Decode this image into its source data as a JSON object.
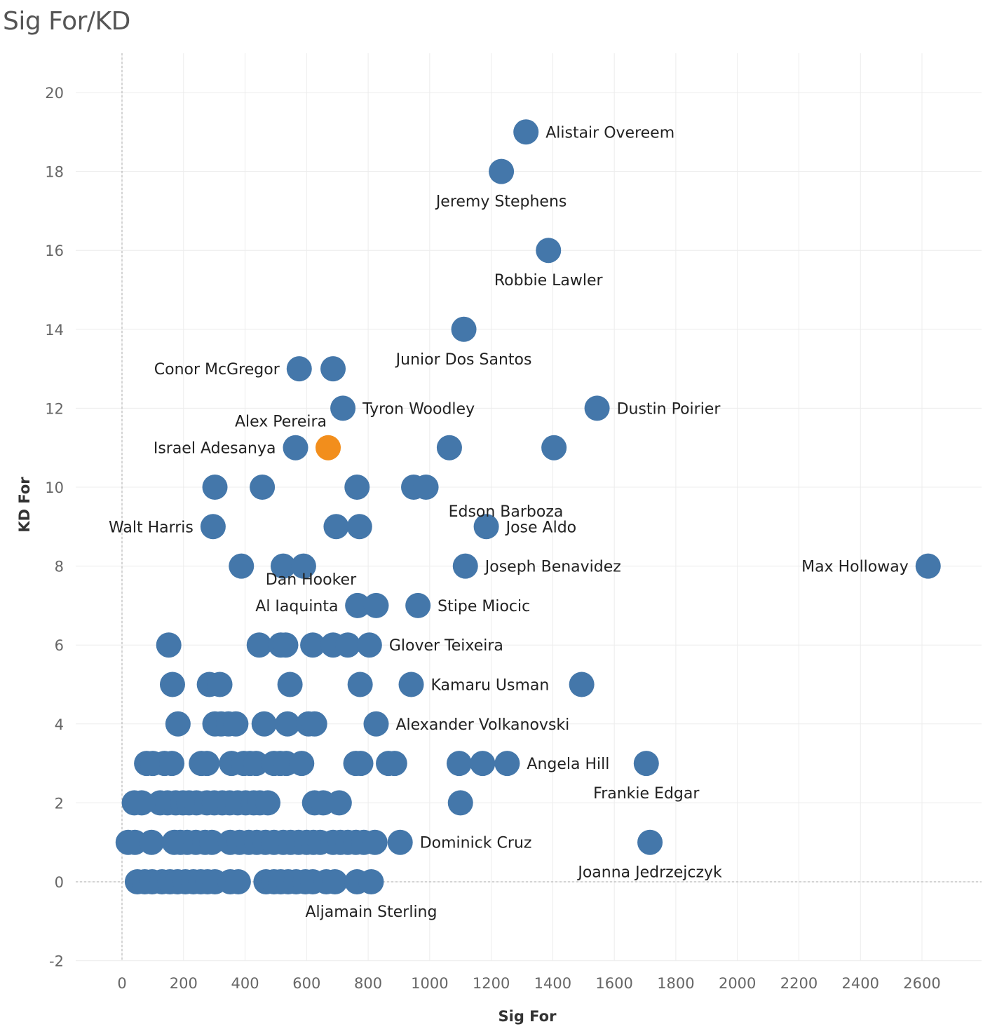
{
  "chart_data": {
    "type": "scatter",
    "title": "Sig For/KD",
    "xlabel": "Sig For",
    "ylabel": "KD For",
    "xlim": [
      -150,
      2800
    ],
    "ylim": [
      -2.8,
      21.2
    ],
    "xticks": [
      0,
      200,
      400,
      600,
      800,
      1000,
      1200,
      1400,
      1600,
      1800,
      2000,
      2200,
      2400,
      2600
    ],
    "yticks": [
      -2,
      0,
      2,
      4,
      6,
      8,
      10,
      12,
      14,
      16,
      18,
      20
    ],
    "grid": true,
    "colors": {
      "default": "#4477aa",
      "highlight": "#f28e1c"
    },
    "points": [
      {
        "x": 1313,
        "y": 19,
        "label": "Alistair Overeem",
        "label_pos": "right"
      },
      {
        "x": 1233,
        "y": 18,
        "label": "Jeremy Stephens",
        "label_pos": "below"
      },
      {
        "x": 1386,
        "y": 16,
        "label": "Robbie Lawler",
        "label_pos": "below"
      },
      {
        "x": 1111,
        "y": 14,
        "label": "Junior Dos Santos",
        "label_pos": "below"
      },
      {
        "x": 576,
        "y": 13,
        "label": "Conor McGregor",
        "label_pos": "left"
      },
      {
        "x": 686,
        "y": 13
      },
      {
        "x": 718,
        "y": 12,
        "label": "Tyron Woodley",
        "label_pos": "right"
      },
      {
        "x": 1544,
        "y": 12,
        "label": "Dustin Poirier",
        "label_pos": "right"
      },
      {
        "x": 564,
        "y": 11,
        "label": "Israel Adesanya",
        "label_pos": "left"
      },
      {
        "x": 670,
        "y": 11,
        "label": "Alex Pereira",
        "label_pos": "above-left",
        "highlight": true
      },
      {
        "x": 1064,
        "y": 11
      },
      {
        "x": 1404,
        "y": 11
      },
      {
        "x": 302,
        "y": 10
      },
      {
        "x": 456,
        "y": 10
      },
      {
        "x": 764,
        "y": 10
      },
      {
        "x": 948,
        "y": 10
      },
      {
        "x": 988,
        "y": 10,
        "label": "Edson Barboza",
        "label_pos": "above-right"
      },
      {
        "x": 296,
        "y": 9,
        "label": "Walt Harris",
        "label_pos": "left"
      },
      {
        "x": 696,
        "y": 9
      },
      {
        "x": 772,
        "y": 9
      },
      {
        "x": 1184,
        "y": 9,
        "label": "Jose Aldo",
        "label_pos": "right"
      },
      {
        "x": 388,
        "y": 8
      },
      {
        "x": 524,
        "y": 8
      },
      {
        "x": 590,
        "y": 8
      },
      {
        "x": 1116,
        "y": 8,
        "label": "Joseph Benavidez",
        "label_pos": "right"
      },
      {
        "x": 2620,
        "y": 8,
        "label": "Max Holloway",
        "label_pos": "left"
      },
      {
        "x": 766,
        "y": 7,
        "label": "Dan Hooker",
        "label_pos": "above-left"
      },
      {
        "x": 826,
        "y": 7,
        "label": "Al Iaquinta",
        "label_pos": "left-far"
      },
      {
        "x": 962,
        "y": 7,
        "label": "Stipe Miocic",
        "label_pos": "right"
      },
      {
        "x": 152,
        "y": 6
      },
      {
        "x": 446,
        "y": 6
      },
      {
        "x": 516,
        "y": 6
      },
      {
        "x": 532,
        "y": 6
      },
      {
        "x": 620,
        "y": 6
      },
      {
        "x": 686,
        "y": 6
      },
      {
        "x": 734,
        "y": 6
      },
      {
        "x": 804,
        "y": 6,
        "label": "Glover Teixeira",
        "label_pos": "right"
      },
      {
        "x": 164,
        "y": 5
      },
      {
        "x": 284,
        "y": 5
      },
      {
        "x": 318,
        "y": 5
      },
      {
        "x": 546,
        "y": 5
      },
      {
        "x": 774,
        "y": 5
      },
      {
        "x": 940,
        "y": 5,
        "label": "Kamaru Usman",
        "label_pos": "right"
      },
      {
        "x": 1494,
        "y": 5
      },
      {
        "x": 182,
        "y": 4
      },
      {
        "x": 302,
        "y": 4
      },
      {
        "x": 322,
        "y": 4
      },
      {
        "x": 346,
        "y": 4
      },
      {
        "x": 370,
        "y": 4
      },
      {
        "x": 462,
        "y": 4
      },
      {
        "x": 538,
        "y": 4
      },
      {
        "x": 606,
        "y": 4
      },
      {
        "x": 626,
        "y": 4
      },
      {
        "x": 826,
        "y": 4,
        "label": "Alexander Volkanovski",
        "label_pos": "right"
      },
      {
        "x": 80,
        "y": 3
      },
      {
        "x": 100,
        "y": 3
      },
      {
        "x": 138,
        "y": 3
      },
      {
        "x": 162,
        "y": 3
      },
      {
        "x": 258,
        "y": 3
      },
      {
        "x": 276,
        "y": 3
      },
      {
        "x": 356,
        "y": 3
      },
      {
        "x": 396,
        "y": 3
      },
      {
        "x": 416,
        "y": 3
      },
      {
        "x": 436,
        "y": 3
      },
      {
        "x": 494,
        "y": 3
      },
      {
        "x": 514,
        "y": 3
      },
      {
        "x": 534,
        "y": 3
      },
      {
        "x": 584,
        "y": 3
      },
      {
        "x": 760,
        "y": 3
      },
      {
        "x": 776,
        "y": 3
      },
      {
        "x": 866,
        "y": 3
      },
      {
        "x": 886,
        "y": 3
      },
      {
        "x": 1096,
        "y": 3
      },
      {
        "x": 1172,
        "y": 3
      },
      {
        "x": 1252,
        "y": 3,
        "label": "Angela Hill",
        "label_pos": "right"
      },
      {
        "x": 1704,
        "y": 3,
        "label": "Frankie Edgar",
        "label_pos": "below"
      },
      {
        "x": 40,
        "y": 2
      },
      {
        "x": 64,
        "y": 2
      },
      {
        "x": 124,
        "y": 2
      },
      {
        "x": 148,
        "y": 2
      },
      {
        "x": 174,
        "y": 2
      },
      {
        "x": 198,
        "y": 2
      },
      {
        "x": 218,
        "y": 2
      },
      {
        "x": 242,
        "y": 2
      },
      {
        "x": 276,
        "y": 2
      },
      {
        "x": 300,
        "y": 2
      },
      {
        "x": 326,
        "y": 2
      },
      {
        "x": 350,
        "y": 2
      },
      {
        "x": 376,
        "y": 2
      },
      {
        "x": 402,
        "y": 2
      },
      {
        "x": 428,
        "y": 2
      },
      {
        "x": 448,
        "y": 2
      },
      {
        "x": 474,
        "y": 2
      },
      {
        "x": 626,
        "y": 2
      },
      {
        "x": 654,
        "y": 2
      },
      {
        "x": 706,
        "y": 2
      },
      {
        "x": 1100,
        "y": 2
      },
      {
        "x": 20,
        "y": 1
      },
      {
        "x": 42,
        "y": 1
      },
      {
        "x": 96,
        "y": 1
      },
      {
        "x": 170,
        "y": 1
      },
      {
        "x": 190,
        "y": 1
      },
      {
        "x": 212,
        "y": 1
      },
      {
        "x": 240,
        "y": 1
      },
      {
        "x": 270,
        "y": 1
      },
      {
        "x": 292,
        "y": 1
      },
      {
        "x": 352,
        "y": 1
      },
      {
        "x": 382,
        "y": 1
      },
      {
        "x": 412,
        "y": 1
      },
      {
        "x": 438,
        "y": 1
      },
      {
        "x": 466,
        "y": 1
      },
      {
        "x": 494,
        "y": 1
      },
      {
        "x": 524,
        "y": 1
      },
      {
        "x": 548,
        "y": 1
      },
      {
        "x": 574,
        "y": 1
      },
      {
        "x": 600,
        "y": 1
      },
      {
        "x": 622,
        "y": 1
      },
      {
        "x": 644,
        "y": 1
      },
      {
        "x": 686,
        "y": 1
      },
      {
        "x": 710,
        "y": 1
      },
      {
        "x": 734,
        "y": 1
      },
      {
        "x": 760,
        "y": 1
      },
      {
        "x": 786,
        "y": 1
      },
      {
        "x": 822,
        "y": 1
      },
      {
        "x": 904,
        "y": 1,
        "label": "Dominick Cruz",
        "label_pos": "right"
      },
      {
        "x": 1716,
        "y": 1,
        "label": "Joanna Jedrzejczyk",
        "label_pos": "below"
      },
      {
        "x": 50,
        "y": 0
      },
      {
        "x": 74,
        "y": 0
      },
      {
        "x": 98,
        "y": 0
      },
      {
        "x": 130,
        "y": 0
      },
      {
        "x": 156,
        "y": 0
      },
      {
        "x": 180,
        "y": 0
      },
      {
        "x": 206,
        "y": 0
      },
      {
        "x": 232,
        "y": 0
      },
      {
        "x": 256,
        "y": 0
      },
      {
        "x": 278,
        "y": 0
      },
      {
        "x": 302,
        "y": 0
      },
      {
        "x": 352,
        "y": 0
      },
      {
        "x": 378,
        "y": 0
      },
      {
        "x": 468,
        "y": 0
      },
      {
        "x": 494,
        "y": 0
      },
      {
        "x": 516,
        "y": 0
      },
      {
        "x": 540,
        "y": 0
      },
      {
        "x": 566,
        "y": 0
      },
      {
        "x": 596,
        "y": 0
      },
      {
        "x": 620,
        "y": 0
      },
      {
        "x": 664,
        "y": 0
      },
      {
        "x": 692,
        "y": 0
      },
      {
        "x": 764,
        "y": 0
      },
      {
        "x": 810,
        "y": 0,
        "label": "Aljamain Sterling",
        "label_pos": "below"
      }
    ]
  }
}
